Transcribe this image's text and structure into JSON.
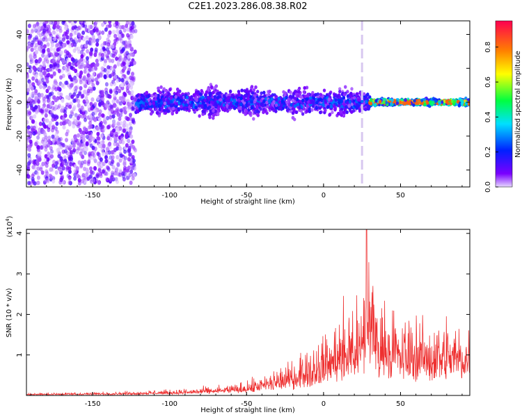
{
  "title": "C2E1.2023.286.08.38.R02",
  "chart_data": [
    {
      "type": "heatmap",
      "title": "C2E1.2023.286.08.38.R02",
      "xlabel": "Height of straight line (km)",
      "ylabel": "Frequency (Hz)",
      "xlim": [
        -193,
        95
      ],
      "ylim": [
        -50,
        48
      ],
      "xticks": [
        "-150",
        "-100",
        "-50",
        "0",
        "50"
      ],
      "yticks": [
        "-40",
        "-20",
        "0",
        "20",
        "40"
      ],
      "colorbar": {
        "label": "Normalized spectral amplitude",
        "range": [
          0,
          0.95
        ],
        "ticks": [
          "0.0",
          "0.2",
          "0.4",
          "0.6",
          "0.8"
        ],
        "colormap": [
          "#e6d8ff",
          "#7a00ff",
          "#0020ff",
          "#00e0ff",
          "#00ff40",
          "#ffff00",
          "#ff8000",
          "#ff0040"
        ]
      },
      "bands": [
        {
          "x_start": -193,
          "x_end": -122,
          "freq_halfwidth": 48,
          "max_amplitude": 0.2
        },
        {
          "x_start": -122,
          "x_end": 30,
          "freq_halfwidth": 12,
          "max_amplitude": 0.35
        },
        {
          "x_start": 30,
          "x_end": 95,
          "freq_halfwidth": 3,
          "max_amplitude": 0.9
        }
      ],
      "vertical_line_x": 25
    },
    {
      "type": "line",
      "xlabel": "Height of straight line (km)",
      "ylabel": "SNR (10 * v/v)",
      "y_multiplier": "(x10",
      "y_multiplier_exp": "4",
      "y_multiplier_close": ")",
      "xlim": [
        -193,
        95
      ],
      "ylim": [
        0,
        4.1
      ],
      "xticks": [
        "-150",
        "-100",
        "-50",
        "0",
        "50"
      ],
      "yticks": [
        "1",
        "2",
        "3",
        "4"
      ],
      "color": "#ee3030",
      "x": [
        -193,
        -160,
        -130,
        -110,
        -90,
        -70,
        -55,
        -45,
        -35,
        -25,
        -15,
        -5,
        5,
        15,
        25,
        28,
        35,
        50,
        65,
        80,
        95
      ],
      "values": [
        0.05,
        0.07,
        0.09,
        0.12,
        0.15,
        0.22,
        0.3,
        0.4,
        0.55,
        0.75,
        1.0,
        1.3,
        1.7,
        2.1,
        2.4,
        4.1,
        2.4,
        1.9,
        1.8,
        1.9,
        1.8
      ]
    }
  ]
}
